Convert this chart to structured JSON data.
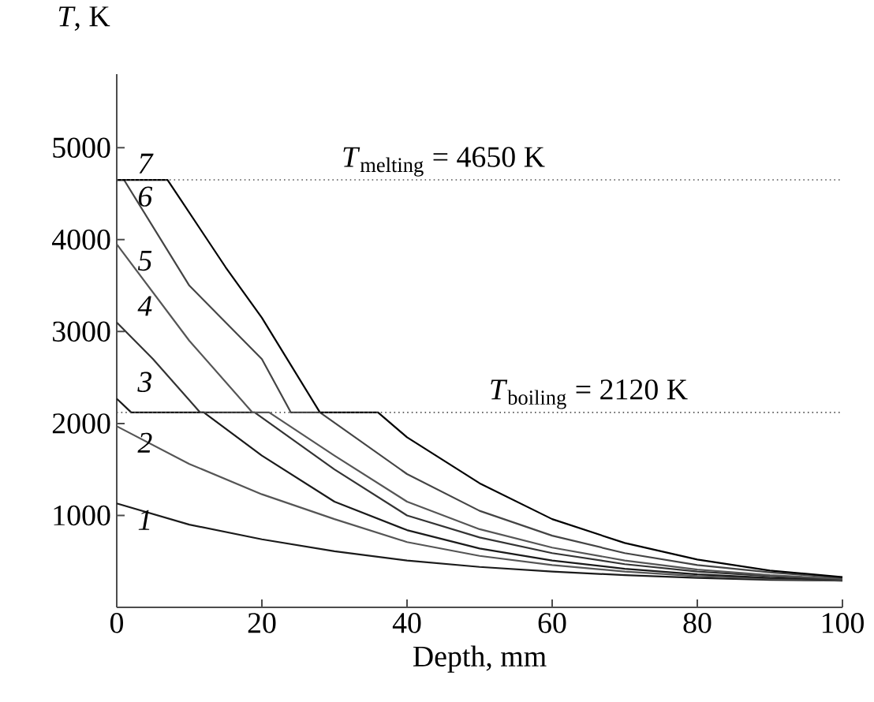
{
  "chart_data": {
    "type": "line",
    "xlabel": "Depth, mm",
    "ylabel": "*T*, K",
    "xlim": [
      0,
      100
    ],
    "ylim": [
      0,
      5800
    ],
    "xticks": [
      0,
      20,
      40,
      60,
      80,
      100
    ],
    "yticks": [
      1000,
      2000,
      3000,
      4000,
      5000
    ],
    "grid": false,
    "marker": "none",
    "line_style": "solid",
    "ref_lines": [
      {
        "axis": "y",
        "value": 4650,
        "label": "*T*$_{melting}$ = 4650 K",
        "line_style": "dotted",
        "color": "#555555"
      },
      {
        "axis": "y",
        "value": 2120,
        "label": "*T*$_{boiling}$ = 2120 K",
        "line_style": "dotted",
        "color": "#555555"
      }
    ],
    "series": [
      {
        "name": "1",
        "color": "#1a1a1a",
        "x": [
          0,
          10,
          20,
          30,
          40,
          50,
          60,
          70,
          80,
          90,
          100
        ],
        "values": [
          1130,
          900,
          740,
          610,
          510,
          440,
          390,
          350,
          320,
          300,
          290
        ]
      },
      {
        "name": "2",
        "color": "#555555",
        "x": [
          0,
          10,
          20,
          30,
          40,
          50,
          60,
          70,
          80,
          90,
          100
        ],
        "values": [
          1970,
          1560,
          1230,
          960,
          710,
          560,
          460,
          390,
          340,
          310,
          290
        ]
      },
      {
        "name": "3",
        "color": "#1a1a1a",
        "x": [
          0,
          2,
          12,
          20,
          30,
          40,
          50,
          60,
          70,
          80,
          90,
          100
        ],
        "values": [
          2270,
          2120,
          2120,
          1650,
          1150,
          840,
          640,
          510,
          420,
          360,
          320,
          300
        ]
      },
      {
        "name": "4",
        "color": "#333333",
        "x": [
          0,
          5,
          11.5,
          19,
          30,
          40,
          50,
          60,
          70,
          80,
          90,
          100
        ],
        "values": [
          3100,
          2700,
          2120,
          2120,
          1500,
          1000,
          760,
          590,
          470,
          390,
          340,
          300
        ]
      },
      {
        "name": "5",
        "color": "#555555",
        "x": [
          0,
          10,
          18.7,
          21,
          30,
          40,
          50,
          60,
          70,
          80,
          90,
          100
        ],
        "values": [
          3950,
          2900,
          2120,
          2120,
          1650,
          1150,
          850,
          650,
          510,
          410,
          350,
          310
        ]
      },
      {
        "name": "6",
        "color": "#444444",
        "x": [
          0,
          1,
          10,
          20,
          24,
          28,
          40,
          50,
          60,
          70,
          80,
          90,
          100
        ],
        "values": [
          4650,
          4650,
          3500,
          2700,
          2120,
          2120,
          1450,
          1050,
          780,
          590,
          460,
          380,
          320
        ]
      },
      {
        "name": "7",
        "color": "#000000",
        "x": [
          0,
          7,
          15,
          20,
          28,
          36,
          40,
          50,
          60,
          70,
          80,
          90,
          100
        ],
        "values": [
          4650,
          4650,
          3700,
          3150,
          2120,
          2120,
          1850,
          1350,
          960,
          700,
          520,
          400,
          330
        ]
      }
    ]
  }
}
